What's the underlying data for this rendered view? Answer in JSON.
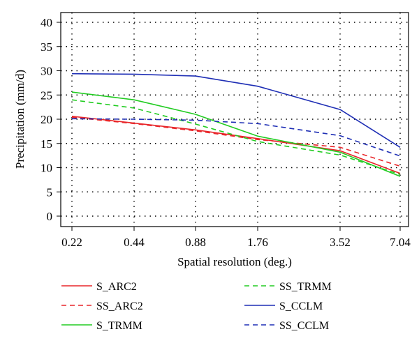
{
  "chart_data": {
    "type": "line",
    "title": "",
    "xlabel": "Spatial resolution (deg.)",
    "ylabel": "Precipitation (mm/d)",
    "categories": [
      "0.22",
      "0.44",
      "0.88",
      "1.76",
      "3.52",
      "7.04"
    ],
    "ylim": [
      0,
      40
    ],
    "yticks": [
      "0",
      "5",
      "10",
      "15",
      "20",
      "25",
      "30",
      "35",
      "40"
    ],
    "grid": true,
    "legend_placement": "bottom",
    "series": [
      {
        "name": "S_ARC2",
        "color": "#e8262a",
        "dash": "solid",
        "values": [
          20.6,
          19.2,
          17.8,
          16.0,
          13.5,
          8.8
        ]
      },
      {
        "name": "SS_ARC2",
        "color": "#e8262a",
        "dash": "dashed",
        "values": [
          20.4,
          19.1,
          17.6,
          15.8,
          14.2,
          10.3
        ]
      },
      {
        "name": "S_TRMM",
        "color": "#22cc22",
        "dash": "solid",
        "values": [
          25.6,
          24.0,
          21.0,
          16.5,
          13.2,
          8.2
        ]
      },
      {
        "name": "SS_TRMM",
        "color": "#22cc22",
        "dash": "dashed",
        "values": [
          24.0,
          22.3,
          19.0,
          15.4,
          12.6,
          8.6
        ]
      },
      {
        "name": "S_CCLM",
        "color": "#1f2fb5",
        "dash": "solid",
        "values": [
          29.4,
          29.3,
          28.9,
          26.8,
          22.0,
          14.2
        ]
      },
      {
        "name": "SS_CCLM",
        "color": "#1f2fb5",
        "dash": "dashed",
        "values": [
          20.1,
          20.0,
          19.8,
          19.1,
          16.6,
          12.4
        ]
      }
    ]
  }
}
